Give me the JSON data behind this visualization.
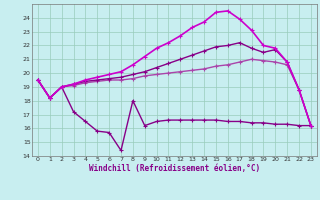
{
  "background_color": "#c8eef0",
  "grid_color": "#99ccbb",
  "line_color": "#990099",
  "xlabel": "Windchill (Refroidissement éolien,°C)",
  "xlim": [
    -0.5,
    23.5
  ],
  "ylim": [
    14,
    25
  ],
  "yticks": [
    14,
    15,
    16,
    17,
    18,
    19,
    20,
    21,
    22,
    23,
    24
  ],
  "xticks": [
    0,
    1,
    2,
    3,
    4,
    5,
    6,
    7,
    8,
    9,
    10,
    11,
    12,
    13,
    14,
    15,
    16,
    17,
    18,
    19,
    20,
    21,
    22,
    23
  ],
  "series": [
    {
      "x": [
        0,
        1,
        2,
        3,
        4,
        5,
        6,
        7,
        8,
        9,
        10,
        11,
        12,
        13,
        14,
        15,
        16,
        17,
        18,
        19,
        20,
        21,
        22,
        23
      ],
      "y": [
        19.5,
        18.2,
        19.0,
        17.2,
        16.5,
        15.8,
        15.7,
        14.4,
        18.0,
        16.2,
        16.5,
        16.6,
        16.6,
        16.6,
        16.6,
        16.6,
        16.5,
        16.5,
        16.4,
        16.4,
        16.3,
        16.3,
        16.2,
        16.2
      ],
      "color": "#880088",
      "lw": 1.0,
      "marker": "+"
    },
    {
      "x": [
        0,
        1,
        2,
        3,
        4,
        5,
        6,
        7,
        8,
        9,
        10,
        11,
        12,
        13,
        14,
        15,
        16,
        17,
        18,
        19,
        20,
        21,
        22,
        23
      ],
      "y": [
        19.5,
        18.2,
        19.0,
        19.1,
        19.3,
        19.4,
        19.5,
        19.5,
        19.6,
        19.8,
        19.9,
        20.0,
        20.1,
        20.2,
        20.3,
        20.5,
        20.6,
        20.8,
        21.0,
        20.9,
        20.8,
        20.6,
        18.8,
        16.2
      ],
      "color": "#aa44aa",
      "lw": 1.0,
      "marker": "+"
    },
    {
      "x": [
        0,
        1,
        2,
        3,
        4,
        5,
        6,
        7,
        8,
        9,
        10,
        11,
        12,
        13,
        14,
        15,
        16,
        17,
        18,
        19,
        20,
        21,
        22,
        23
      ],
      "y": [
        19.5,
        18.2,
        19.0,
        19.2,
        19.4,
        19.5,
        19.6,
        19.7,
        19.9,
        20.1,
        20.4,
        20.7,
        21.0,
        21.3,
        21.6,
        21.9,
        22.0,
        22.2,
        21.8,
        21.5,
        21.7,
        20.8,
        18.8,
        16.2
      ],
      "color": "#880088",
      "lw": 1.0,
      "marker": "+"
    },
    {
      "x": [
        0,
        1,
        2,
        3,
        4,
        5,
        6,
        7,
        8,
        9,
        10,
        11,
        12,
        13,
        14,
        15,
        16,
        17,
        18,
        19,
        20,
        21,
        22,
        23
      ],
      "y": [
        19.5,
        18.2,
        19.0,
        19.2,
        19.5,
        19.7,
        19.9,
        20.1,
        20.6,
        21.2,
        21.8,
        22.2,
        22.7,
        23.3,
        23.7,
        24.4,
        24.5,
        23.9,
        23.1,
        22.0,
        21.8,
        20.8,
        18.8,
        16.2
      ],
      "color": "#cc00cc",
      "lw": 1.2,
      "marker": "+"
    }
  ]
}
